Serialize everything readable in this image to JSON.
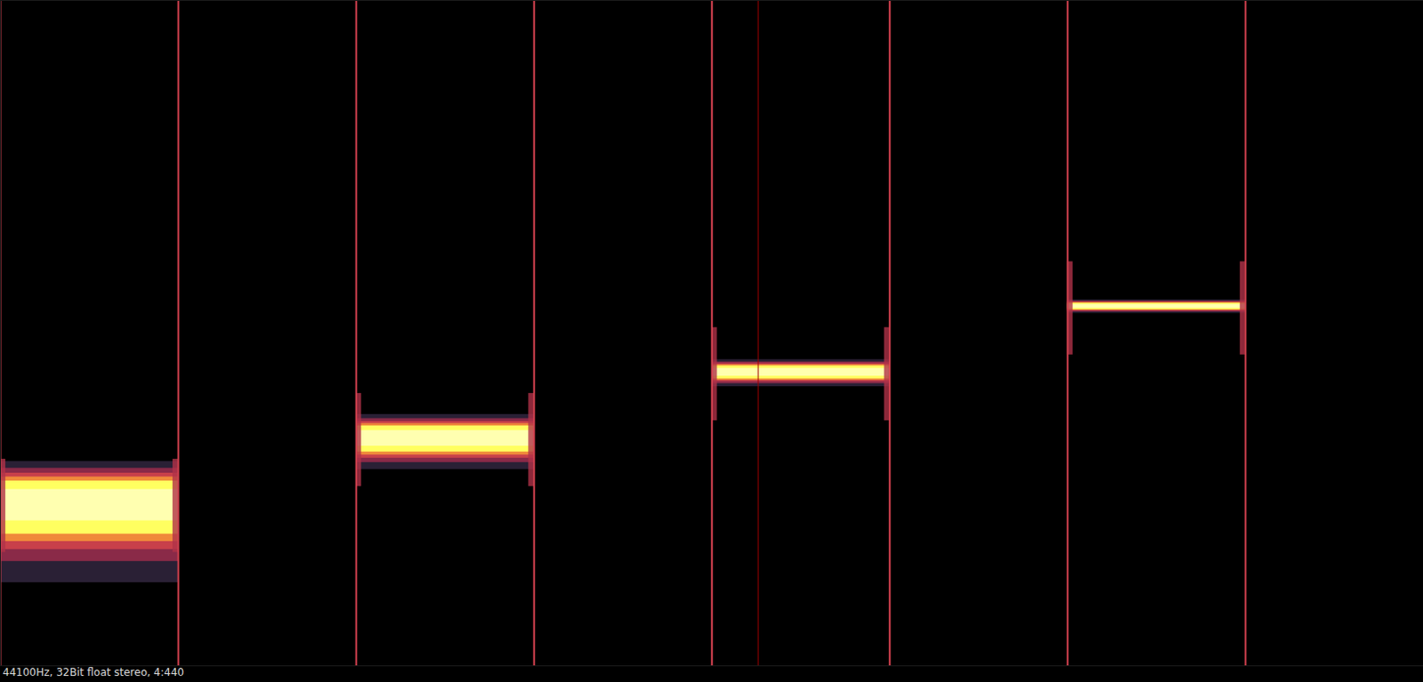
{
  "chart_data": {
    "type": "spectrogram",
    "caption": "44100Hz, 32Bit float stereo, 4:440",
    "xlim": [
      0,
      4
    ],
    "ylim": [
      20,
      22050
    ],
    "log": "y",
    "tick_labels": false,
    "color": "#ffff60",
    "cursor": 2.13,
    "tones": [
      {
        "start": 0,
        "end": 0.5,
        "frequency": 110
      },
      {
        "start": 1,
        "end": 1.5,
        "frequency": 220
      },
      {
        "start": 2,
        "end": 2.5,
        "frequency": 440
      },
      {
        "start": 3,
        "end": 3.5,
        "frequency": 880
      }
    ]
  }
}
